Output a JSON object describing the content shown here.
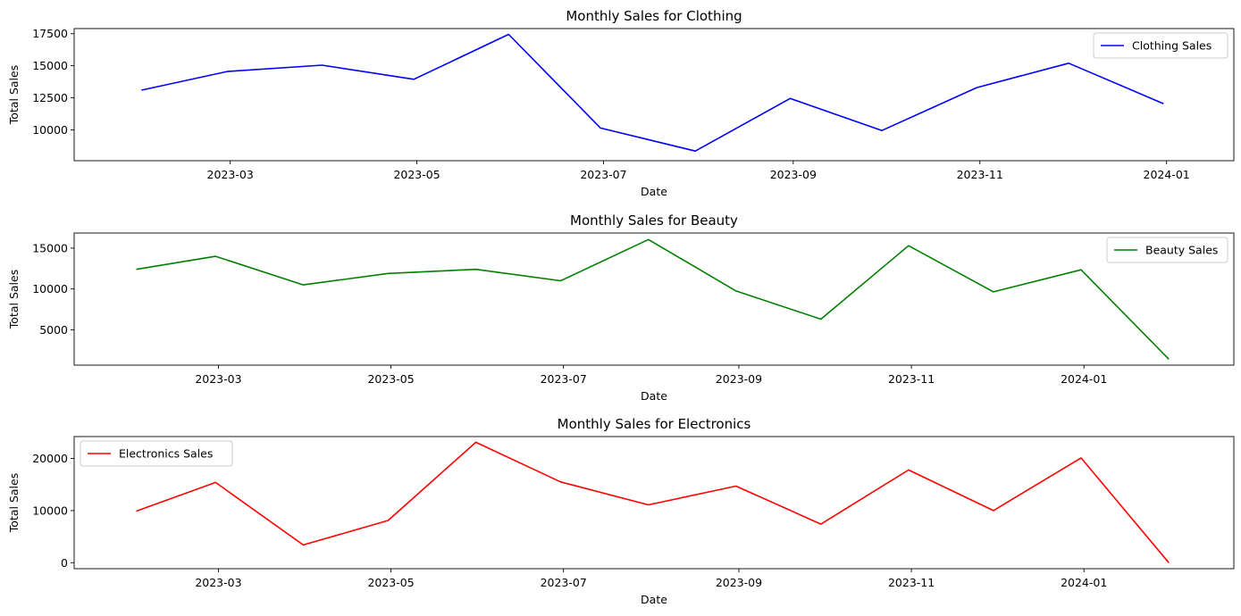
{
  "chart_data": [
    {
      "type": "line",
      "title": "Monthly Sales for Clothing",
      "xlabel": "Date",
      "ylabel": "Total Sales",
      "xlim": [
        "2023-01-09",
        "2024-01-23"
      ],
      "ylim": [
        7600,
        17900
      ],
      "xticks": [
        "2023-03-01",
        "2023-05-01",
        "2023-07-01",
        "2023-09-01",
        "2023-11-01",
        "2024-01-01"
      ],
      "xtick_labels": [
        "2023-03",
        "2023-05",
        "2023-07",
        "2023-09",
        "2023-11",
        "2024-01"
      ],
      "yticks": [
        10000,
        12500,
        15000,
        17500
      ],
      "ytick_labels": [
        "10000",
        "12500",
        "15000",
        "17500"
      ],
      "legend_position": "upper right",
      "series": [
        {
          "name": "Clothing Sales",
          "color": "#0000ff",
          "x": [
            "2023-01-31",
            "2023-02-28",
            "2023-03-31",
            "2023-04-30",
            "2023-05-31",
            "2023-06-30",
            "2023-07-31",
            "2023-08-31",
            "2023-09-30",
            "2023-10-31",
            "2023-11-30",
            "2023-12-31"
          ],
          "values": [
            13100,
            14550,
            15050,
            13950,
            17450,
            10150,
            8350,
            12450,
            9950,
            13300,
            15200,
            12050
          ]
        }
      ]
    },
    {
      "type": "line",
      "title": "Monthly Sales for Beauty",
      "xlabel": "Date",
      "ylabel": "Total Sales",
      "xlim": [
        "2023-01-09",
        "2024-02-23"
      ],
      "ylim": [
        670,
        16850
      ],
      "xticks": [
        "2023-03-01",
        "2023-05-01",
        "2023-07-01",
        "2023-09-01",
        "2023-11-01",
        "2024-01-01"
      ],
      "xtick_labels": [
        "2023-03",
        "2023-05",
        "2023-07",
        "2023-09",
        "2023-11",
        "2024-01"
      ],
      "yticks": [
        5000,
        10000,
        15000
      ],
      "ytick_labels": [
        "5000",
        "10000",
        "15000"
      ],
      "legend_position": "upper right",
      "series": [
        {
          "name": "Beauty Sales",
          "color": "#008000",
          "x": [
            "2023-01-31",
            "2023-02-28",
            "2023-03-31",
            "2023-04-30",
            "2023-05-31",
            "2023-06-30",
            "2023-07-31",
            "2023-08-31",
            "2023-09-30",
            "2023-10-31",
            "2023-11-30",
            "2023-12-31",
            "2024-01-31"
          ],
          "values": [
            12400,
            14000,
            10500,
            11900,
            12400,
            11000,
            16050,
            9750,
            6300,
            15300,
            9650,
            12350,
            1400
          ]
        }
      ]
    },
    {
      "type": "line",
      "title": "Monthly Sales for Electronics",
      "xlabel": "Date",
      "ylabel": "Total Sales",
      "xlim": [
        "2023-01-09",
        "2024-02-23"
      ],
      "ylim": [
        -1150,
        24200
      ],
      "xticks": [
        "2023-03-01",
        "2023-05-01",
        "2023-07-01",
        "2023-09-01",
        "2023-11-01",
        "2024-01-01"
      ],
      "xtick_labels": [
        "2023-03",
        "2023-05",
        "2023-07",
        "2023-09",
        "2023-11",
        "2024-01"
      ],
      "yticks": [
        0,
        10000,
        20000
      ],
      "ytick_labels": [
        "0",
        "10000",
        "20000"
      ],
      "legend_position": "upper left",
      "series": [
        {
          "name": "Electronics Sales",
          "color": "#ff0000",
          "x": [
            "2023-01-31",
            "2023-02-28",
            "2023-03-31",
            "2023-04-30",
            "2023-05-31",
            "2023-06-30",
            "2023-07-31",
            "2023-08-31",
            "2023-09-30",
            "2023-10-31",
            "2023-11-30",
            "2023-12-31",
            "2024-01-31"
          ],
          "values": [
            9900,
            15400,
            3400,
            8100,
            23100,
            15500,
            11100,
            14700,
            7400,
            17800,
            10000,
            20100,
            0
          ]
        }
      ]
    }
  ]
}
